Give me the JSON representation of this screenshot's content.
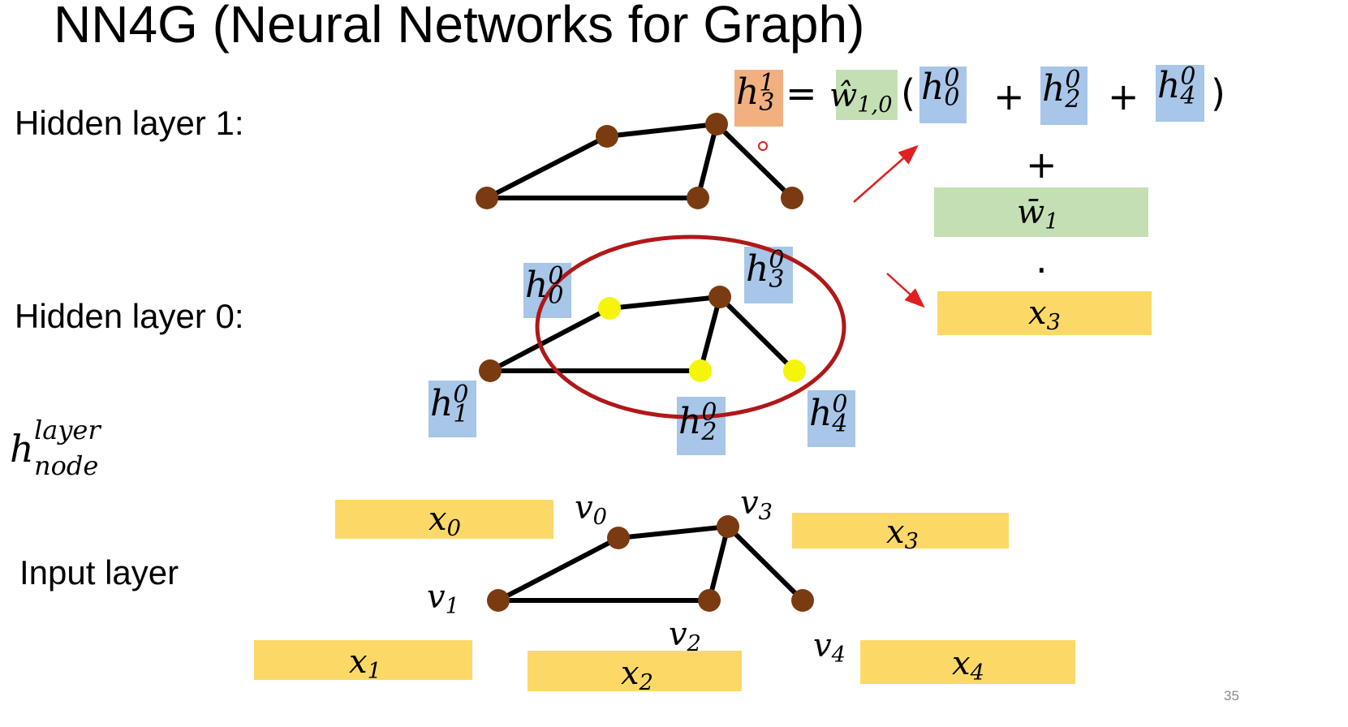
{
  "title": "NN4G (Neural Networks for Graph)",
  "layers": {
    "hidden1": "Hidden layer 1:",
    "hidden0": "Hidden layer 0:",
    "input": "Input layer"
  },
  "notation": {
    "base": "h",
    "sup": "layer",
    "sub": "node"
  },
  "page_number": "35",
  "equation": {
    "lhs": {
      "base": "h",
      "sup": "1",
      "sub": "3"
    },
    "equals": "=",
    "weight": {
      "base": "ŵ",
      "sub": "1,0"
    },
    "open_paren": "(",
    "terms": [
      {
        "base": "h",
        "sup": "0",
        "sub": "0"
      },
      {
        "base": "h",
        "sup": "0",
        "sub": "2"
      },
      {
        "base": "h",
        "sup": "0",
        "sub": "4"
      }
    ],
    "plus": "+",
    "close_paren": ")",
    "plus_below": "+",
    "bias_weight": {
      "base": "w̄",
      "sub": "1"
    },
    "dot": "·",
    "input_feature": {
      "base": "x",
      "sub": "3"
    }
  },
  "hidden0_labels": [
    {
      "base": "h",
      "sup": "0",
      "sub": "0"
    },
    {
      "base": "h",
      "sup": "0",
      "sub": "1"
    },
    {
      "base": "h",
      "sup": "0",
      "sub": "2"
    },
    {
      "base": "h",
      "sup": "0",
      "sub": "3"
    },
    {
      "base": "h",
      "sup": "0",
      "sub": "4"
    }
  ],
  "input_nodes": [
    {
      "base": "v",
      "sub": "0"
    },
    {
      "base": "v",
      "sub": "1"
    },
    {
      "base": "v",
      "sub": "2"
    },
    {
      "base": "v",
      "sub": "3"
    },
    {
      "base": "v",
      "sub": "4"
    }
  ],
  "input_features": [
    {
      "base": "x",
      "sub": "0"
    },
    {
      "base": "x",
      "sub": "1"
    },
    {
      "base": "x",
      "sub": "2"
    },
    {
      "base": "x",
      "sub": "3"
    },
    {
      "base": "x",
      "sub": "4"
    }
  ],
  "colors": {
    "node": "#7a3b10",
    "highlight_node": "#f5f50a",
    "edge": "#000000",
    "blue_box": "#a7c6e8",
    "orange_box": "#f2b081",
    "green_box": "#c4dfb4",
    "yellow_box": "#fcd966",
    "circle": "#b01818",
    "arrow": "#e02020"
  }
}
